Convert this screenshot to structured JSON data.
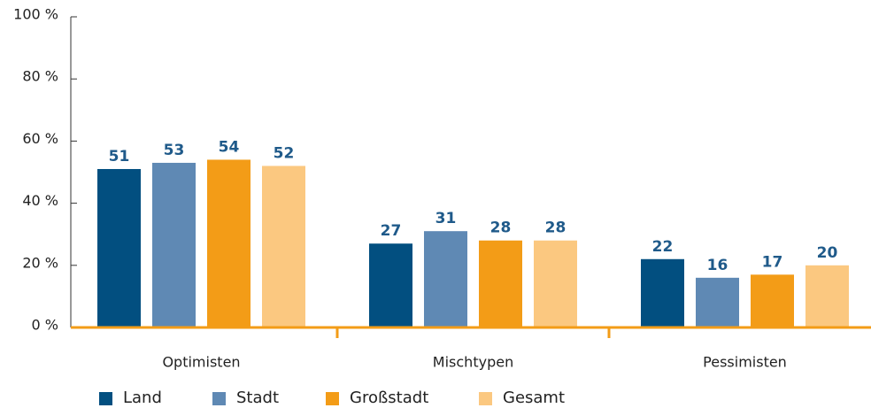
{
  "chart_data": {
    "type": "bar",
    "categories": [
      "Optimisten",
      "Mischtypen",
      "Pessimisten"
    ],
    "series": [
      {
        "name": "Land",
        "color": "#024f80",
        "values": [
          51,
          27,
          22
        ]
      },
      {
        "name": "Stadt",
        "color": "#5f89b4",
        "values": [
          53,
          31,
          16
        ]
      },
      {
        "name": "Großstadt",
        "color": "#f39c17",
        "values": [
          54,
          28,
          17
        ]
      },
      {
        "name": "Gesamt",
        "color": "#fbc880",
        "values": [
          52,
          28,
          20
        ]
      }
    ],
    "ylim": [
      0,
      100
    ],
    "yticks": [
      {
        "value": 0,
        "label": "0 %"
      },
      {
        "value": 20,
        "label": "20 %"
      },
      {
        "value": 40,
        "label": "40 %"
      },
      {
        "value": 60,
        "label": "60 %"
      },
      {
        "value": 80,
        "label": "80 %"
      },
      {
        "value": 100,
        "label": "100 %"
      }
    ],
    "grid": false
  }
}
